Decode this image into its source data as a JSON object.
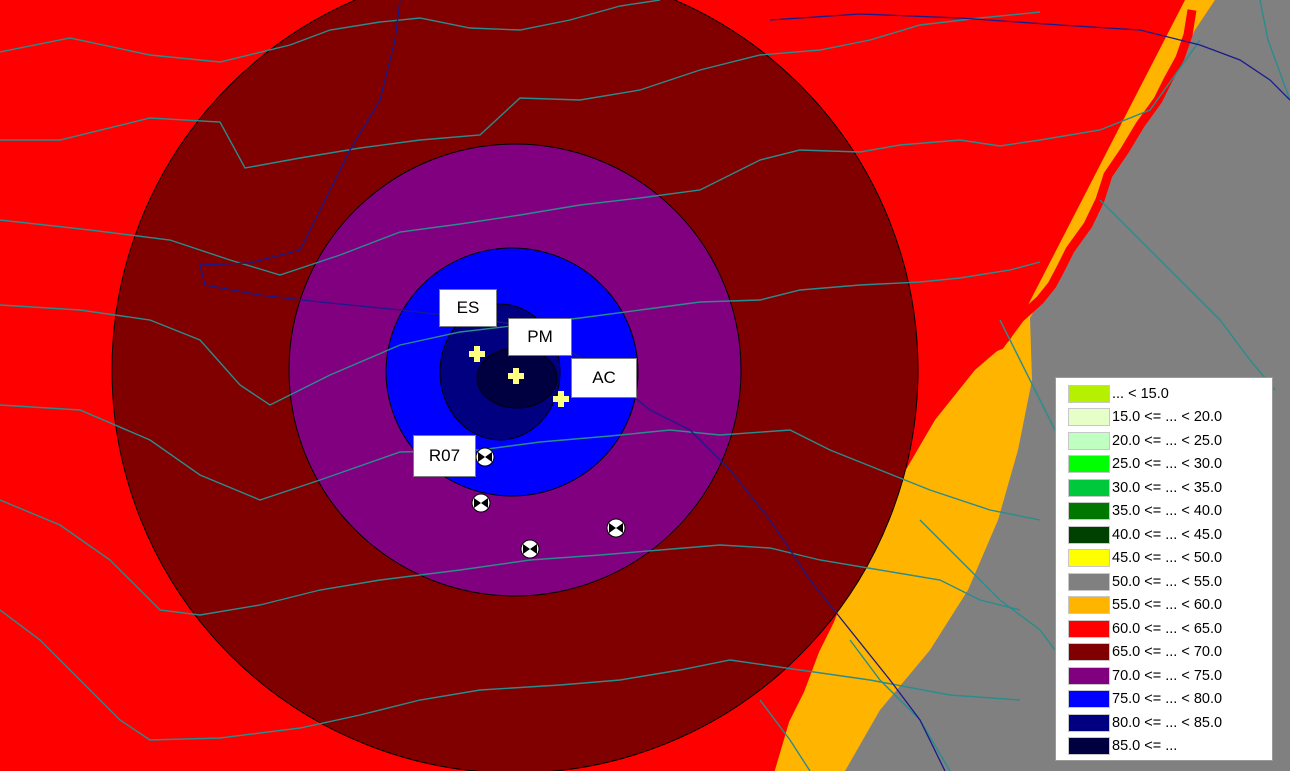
{
  "map": {
    "zones": [
      {
        "name": "background-zone",
        "color": "#ff0000",
        "legend_band": "60.0 <= ... < 65.0"
      },
      {
        "name": "grey-zone",
        "color": "#808080",
        "legend_band": "50.0 <= ... < 55.0"
      },
      {
        "name": "orange-zone",
        "color": "#ffb400",
        "legend_band": "55.0 <= ... < 60.0"
      },
      {
        "name": "ring-65-70",
        "color": "#800000",
        "legend_band": "65.0 <= ... < 70.0"
      },
      {
        "name": "ring-70-75",
        "color": "#800080",
        "legend_band": "70.0 <= ... < 75.0"
      },
      {
        "name": "ring-75-80",
        "color": "#0000ff",
        "legend_band": "75.0 <= ... < 80.0"
      },
      {
        "name": "ring-80-85",
        "color": "#000080",
        "legend_band": "80.0 <= ... < 85.0"
      },
      {
        "name": "ring-85-plus",
        "color": "#000040",
        "legend_band": "85.0 <= ..."
      }
    ],
    "contour_color": "#2a8c8c",
    "route_color": "#1a1a8c",
    "source_marker_color": "#ffff80",
    "receiver_icon": "receiver-icon",
    "source_icon": "source-cross-icon",
    "labels": {
      "es": "ES",
      "pm": "PM",
      "ac": "AC",
      "r07": "R07"
    }
  },
  "legend": {
    "items": [
      {
        "label": "... < 15.0",
        "color": "#b4f000"
      },
      {
        "label": "15.0 <= ... < 20.0",
        "color": "#e6ffc8"
      },
      {
        "label": "20.0 <= ... < 25.0",
        "color": "#bfffbf"
      },
      {
        "label": "25.0 <= ... < 30.0",
        "color": "#00ff00"
      },
      {
        "label": "30.0 <= ... < 35.0",
        "color": "#00c83c"
      },
      {
        "label": "35.0 <= ... < 40.0",
        "color": "#007800"
      },
      {
        "label": "40.0 <= ... < 45.0",
        "color": "#004000"
      },
      {
        "label": "45.0 <= ... < 50.0",
        "color": "#ffff00"
      },
      {
        "label": "50.0 <= ... < 55.0",
        "color": "#808080"
      },
      {
        "label": "55.0 <= ... < 60.0",
        "color": "#ffb400"
      },
      {
        "label": "60.0 <= ... < 65.0",
        "color": "#ff0000"
      },
      {
        "label": "65.0 <= ... < 70.0",
        "color": "#800000"
      },
      {
        "label": "70.0 <= ... < 75.0",
        "color": "#800080"
      },
      {
        "label": "75.0 <= ... < 80.0",
        "color": "#0000ff"
      },
      {
        "label": "80.0 <= ... < 85.0",
        "color": "#000080"
      },
      {
        "label": "85.0 <= ...",
        "color": "#000040"
      }
    ]
  }
}
